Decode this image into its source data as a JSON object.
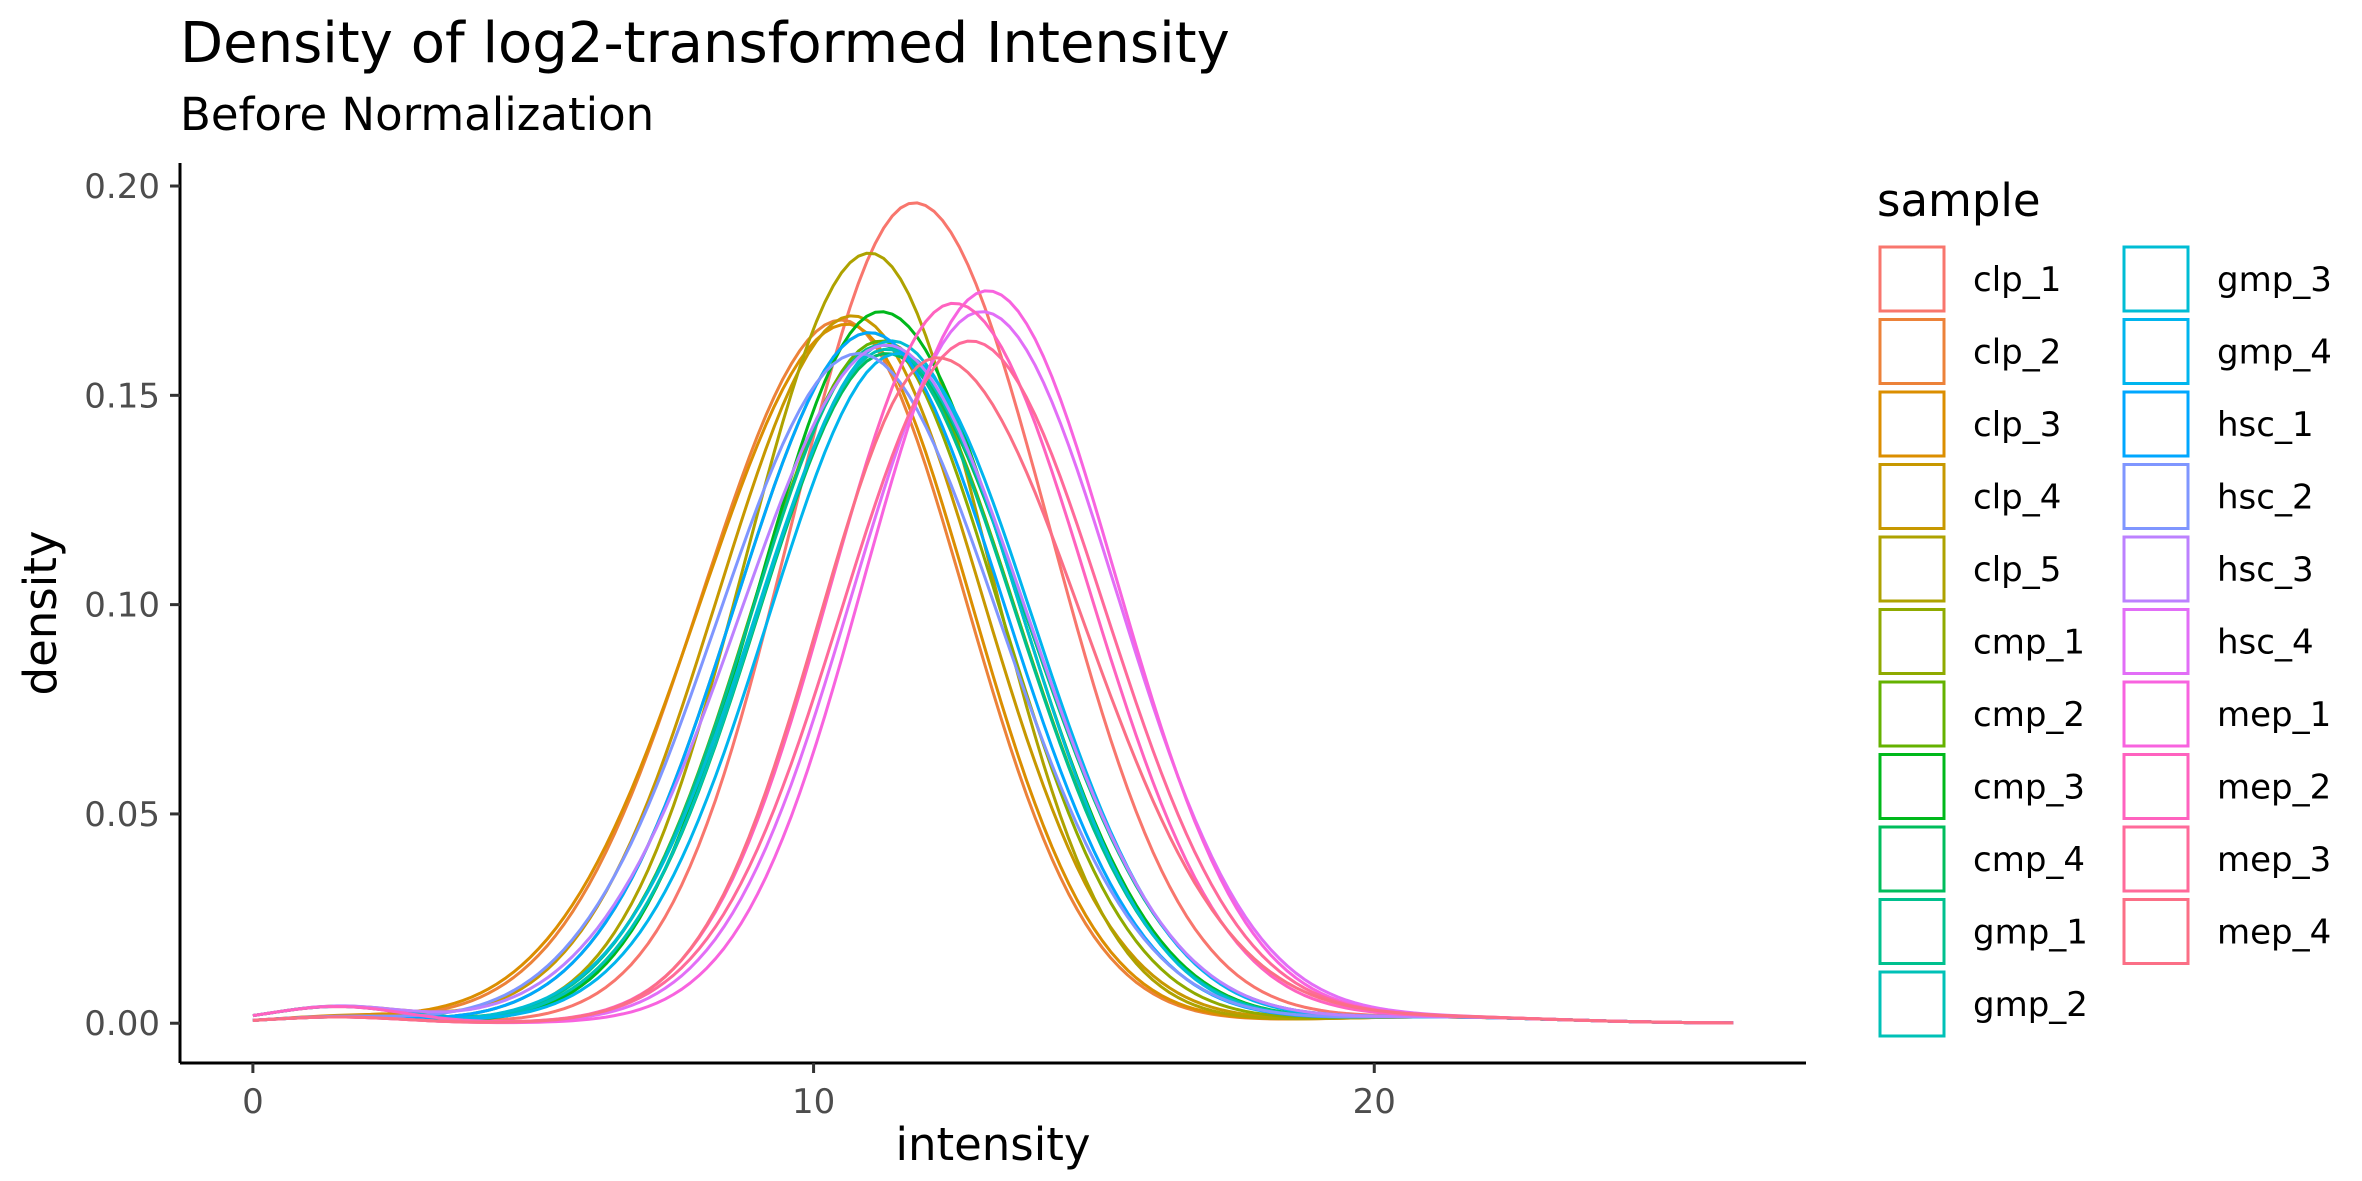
{
  "chart_data": {
    "type": "line",
    "title": "Density of log2-transformed Intensity",
    "subtitle": "Before Normalization",
    "xlabel": "intensity",
    "ylabel": "density",
    "xlim": [
      -1.3,
      27.7
    ],
    "ylim": [
      -0.0095,
      0.2055
    ],
    "x_ticks": [
      0,
      10,
      20
    ],
    "x_tick_labels": [
      "0",
      "10",
      "20"
    ],
    "y_ticks": [
      0,
      0.05,
      0.1,
      0.15,
      0.2
    ],
    "y_tick_labels": [
      "0.00",
      "0.05",
      "0.10",
      "0.15",
      "0.20"
    ],
    "grid": false,
    "legend": {
      "title": "sample",
      "placement": "right",
      "columns": 2
    },
    "series": [
      {
        "name": "clp_1",
        "color": "#F8766D",
        "peak_x": 11.8,
        "peak_y": 0.196,
        "width_left": 2.2,
        "width_right": 2.4
      },
      {
        "name": "clp_2",
        "color": "#EC8239",
        "peak_x": 10.5,
        "peak_y": 0.168,
        "width_left": 2.5,
        "width_right": 2.2
      },
      {
        "name": "clp_3",
        "color": "#DB8E00",
        "peak_x": 10.6,
        "peak_y": 0.167,
        "width_left": 2.6,
        "width_right": 2.2
      },
      {
        "name": "clp_4",
        "color": "#C79800",
        "peak_x": 10.7,
        "peak_y": 0.169,
        "width_left": 2.4,
        "width_right": 2.3
      },
      {
        "name": "clp_5",
        "color": "#AEA200",
        "peak_x": 11.0,
        "peak_y": 0.184,
        "width_left": 2.2,
        "width_right": 2.1
      },
      {
        "name": "cmp_1",
        "color": "#8FAA00",
        "peak_x": 11.0,
        "peak_y": 0.165,
        "width_left": 2.4,
        "width_right": 2.3
      },
      {
        "name": "cmp_2",
        "color": "#64B200",
        "peak_x": 11.2,
        "peak_y": 0.163,
        "width_left": 2.3,
        "width_right": 2.4
      },
      {
        "name": "cmp_3",
        "color": "#00B81B",
        "peak_x": 11.2,
        "peak_y": 0.17,
        "width_left": 2.2,
        "width_right": 2.4
      },
      {
        "name": "cmp_4",
        "color": "#00BD5C",
        "peak_x": 11.3,
        "peak_y": 0.16,
        "width_left": 2.3,
        "width_right": 2.5
      },
      {
        "name": "gmp_1",
        "color": "#00C08E",
        "peak_x": 11.2,
        "peak_y": 0.162,
        "width_left": 2.3,
        "width_right": 2.4
      },
      {
        "name": "gmp_2",
        "color": "#00C1B7",
        "peak_x": 11.3,
        "peak_y": 0.161,
        "width_left": 2.3,
        "width_right": 2.5
      },
      {
        "name": "gmp_3",
        "color": "#00BDD4",
        "peak_x": 11.4,
        "peak_y": 0.163,
        "width_left": 2.4,
        "width_right": 2.3
      },
      {
        "name": "gmp_4",
        "color": "#00B5EE",
        "peak_x": 11.5,
        "peak_y": 0.16,
        "width_left": 2.3,
        "width_right": 2.4
      },
      {
        "name": "hsc_1",
        "color": "#00A7FF",
        "peak_x": 11.0,
        "peak_y": 0.165,
        "width_left": 2.4,
        "width_right": 2.4
      },
      {
        "name": "hsc_2",
        "color": "#7F96FF",
        "peak_x": 10.8,
        "peak_y": 0.16,
        "width_left": 2.5,
        "width_right": 2.5
      },
      {
        "name": "hsc_3",
        "color": "#BC81FF",
        "peak_x": 11.3,
        "peak_y": 0.162,
        "width_left": 2.6,
        "width_right": 2.5
      },
      {
        "name": "hsc_4",
        "color": "#E26EF7",
        "peak_x": 13.0,
        "peak_y": 0.17,
        "width_left": 2.3,
        "width_right": 2.4
      },
      {
        "name": "mep_1",
        "color": "#F863DF",
        "peak_x": 13.1,
        "peak_y": 0.175,
        "width_left": 2.2,
        "width_right": 2.3
      },
      {
        "name": "mep_2",
        "color": "#FF62BF",
        "peak_x": 12.5,
        "peak_y": 0.172,
        "width_left": 2.2,
        "width_right": 2.4
      },
      {
        "name": "mep_3",
        "color": "#FF6A9A",
        "peak_x": 12.8,
        "peak_y": 0.163,
        "width_left": 2.3,
        "width_right": 2.4
      },
      {
        "name": "mep_4",
        "color": "#FB6F86",
        "peak_x": 12.2,
        "peak_y": 0.159,
        "width_left": 2.1,
        "width_right": 2.6
      }
    ]
  }
}
